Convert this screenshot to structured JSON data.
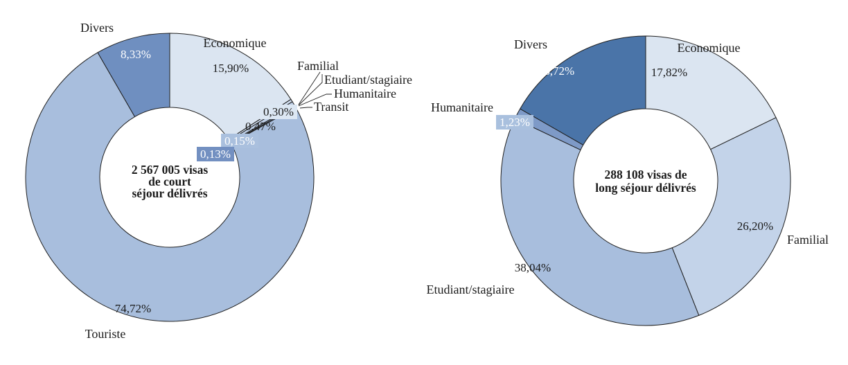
{
  "figure": {
    "background": "#ffffff",
    "stroke_color": "#1f1f1f",
    "text_color": "#1a1a1a"
  },
  "chart_data": [
    {
      "name": "visas-court-sejour",
      "type": "pie",
      "subtype": "donut",
      "title": "2 567 005 visas de court séjour délivrés",
      "center_label_lines": [
        "2 567 005 visas",
        "de court",
        "séjour délivrés"
      ],
      "legend_position": "none",
      "series": [
        {
          "label": "Economique",
          "value": 15.9,
          "display": "15,90%",
          "color": "#dbe5f1",
          "label_color": "#1a1a1a"
        },
        {
          "label": "Familial",
          "value": 0.3,
          "display": "0,30%",
          "color": "#cfdcee",
          "label_color": "#1a1a1a",
          "label_box": "#dce7f3"
        },
        {
          "label": "Etudiant/stagiaire",
          "value": 0.47,
          "display": "0,47%",
          "color": "#bccde5",
          "label_color": "#1a1a1a"
        },
        {
          "label": "Humanitaire",
          "value": 0.15,
          "display": "0,15%",
          "color": "#aac0de",
          "label_color": "#ffffff",
          "label_box": "#aac0de"
        },
        {
          "label": "Transit",
          "value": 0.13,
          "display": "0,13%",
          "color": "#7390c1",
          "label_color": "#ffffff",
          "label_box": "#7390c1"
        },
        {
          "label": "Touriste",
          "value": 74.72,
          "display": "74,72%",
          "color": "#a8bedd",
          "label_color": "#1a1a1a"
        },
        {
          "label": "Divers",
          "value": 8.33,
          "display": "8,33%",
          "color": "#6f8fc0",
          "label_color": "#ffffff"
        }
      ]
    },
    {
      "name": "visas-long-sejour",
      "type": "pie",
      "subtype": "donut",
      "title": "288 108 visas de long séjour délivrés",
      "center_label_lines": [
        "288 108 visas de",
        "long séjour délivrés"
      ],
      "legend_position": "none",
      "series": [
        {
          "label": "Economique",
          "value": 17.82,
          "display": "17,82%",
          "color": "#dbe5f1",
          "label_color": "#1a1a1a"
        },
        {
          "label": "Familial",
          "value": 26.2,
          "display": "26,20%",
          "color": "#c3d3e9",
          "label_color": "#1a1a1a"
        },
        {
          "label": "Etudiant/stagiaire",
          "value": 38.04,
          "display": "38,04%",
          "color": "#a8bedd",
          "label_color": "#1a1a1a"
        },
        {
          "label": "Humanitaire",
          "value": 1.23,
          "display": "1,23%",
          "color": "#7e9ac7",
          "label_color": "#ffffff",
          "label_box": "#a9c0de"
        },
        {
          "label": "Divers",
          "value": 16.72,
          "display": "16,72%",
          "color": "#4a74a8",
          "label_color": "#ffffff"
        }
      ]
    }
  ]
}
